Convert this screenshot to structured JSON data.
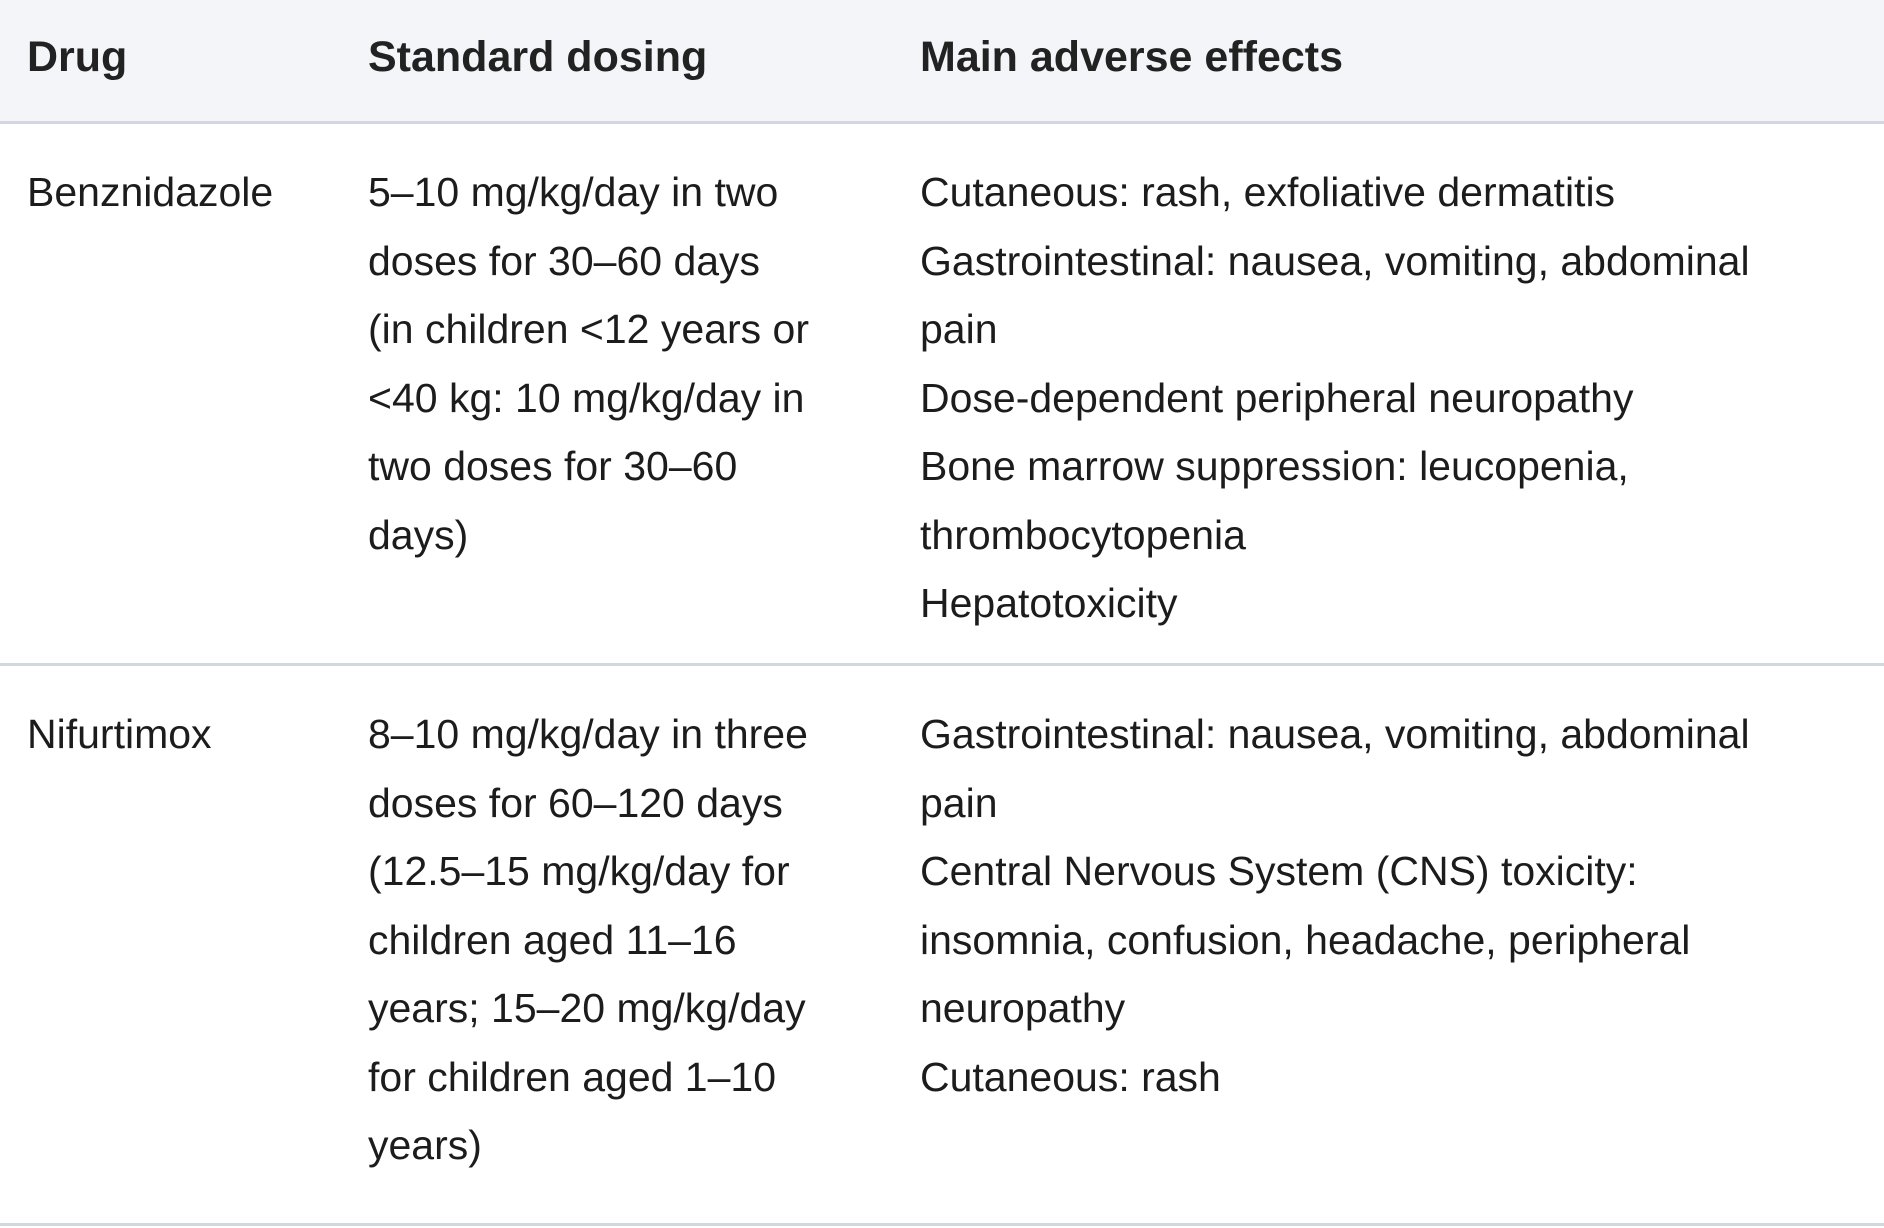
{
  "table": {
    "headers": [
      "Drug",
      "Standard dosing",
      "Main adverse effects"
    ],
    "rows": [
      {
        "drug": "Benznidazole",
        "dosing_lines": [
          "5–10 mg/kg/day in two",
          "doses for 30–60 days",
          "(in children <12 years or",
          "<40 kg: 10 mg/kg/day in",
          "two doses for 30–60",
          "days)"
        ],
        "effects_lines": [
          "Cutaneous: rash, exfoliative dermatitis",
          "Gastrointestinal: nausea, vomiting, abdominal",
          "pain",
          "Dose-dependent peripheral neuropathy",
          "Bone marrow suppression: leucopenia,",
          "thrombocytopenia",
          "Hepatotoxicity"
        ]
      },
      {
        "drug": "Nifurtimox",
        "dosing_lines": [
          "8–10 mg/kg/day in three",
          "doses for 60–120 days",
          "(12.5–15 mg/kg/day for",
          "children aged 11–16",
          "years; 15–20 mg/kg/day",
          "for children aged 1–10",
          "years)"
        ],
        "effects_lines": [
          "Gastrointestinal: nausea, vomiting, abdominal",
          "pain",
          "Central Nervous System (CNS) toxicity:",
          "insomnia, confusion, headache, peripheral",
          "neuropathy",
          "Cutaneous: rash"
        ]
      }
    ]
  }
}
